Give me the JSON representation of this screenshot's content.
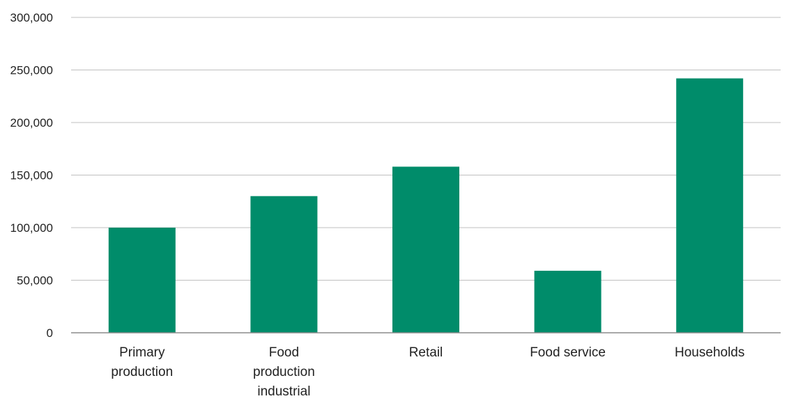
{
  "chart_data": {
    "type": "bar",
    "title": "",
    "xlabel": "",
    "ylabel": "",
    "categories": [
      [
        "Primary",
        "production"
      ],
      [
        "Food",
        "production",
        "industrial"
      ],
      [
        "Retail"
      ],
      [
        "Food service"
      ],
      [
        "Households"
      ]
    ],
    "values": [
      100000,
      130000,
      158000,
      59000,
      242000
    ],
    "ylim": [
      0,
      300000
    ],
    "yticks": [
      {
        "value": 0,
        "label": "0"
      },
      {
        "value": 50000,
        "label": "50,000"
      },
      {
        "value": 100000,
        "label": "100,000"
      },
      {
        "value": 150000,
        "label": "150,000"
      },
      {
        "value": 200000,
        "label": "200,000"
      },
      {
        "value": 250000,
        "label": "250,000"
      },
      {
        "value": 300000,
        "label": "300,000"
      }
    ],
    "grid": true,
    "legend": "none",
    "colors": {
      "bar": "#008C6A",
      "grid": "#BFBFBF",
      "axis": "#8C8C8C",
      "text": "#222222"
    }
  }
}
